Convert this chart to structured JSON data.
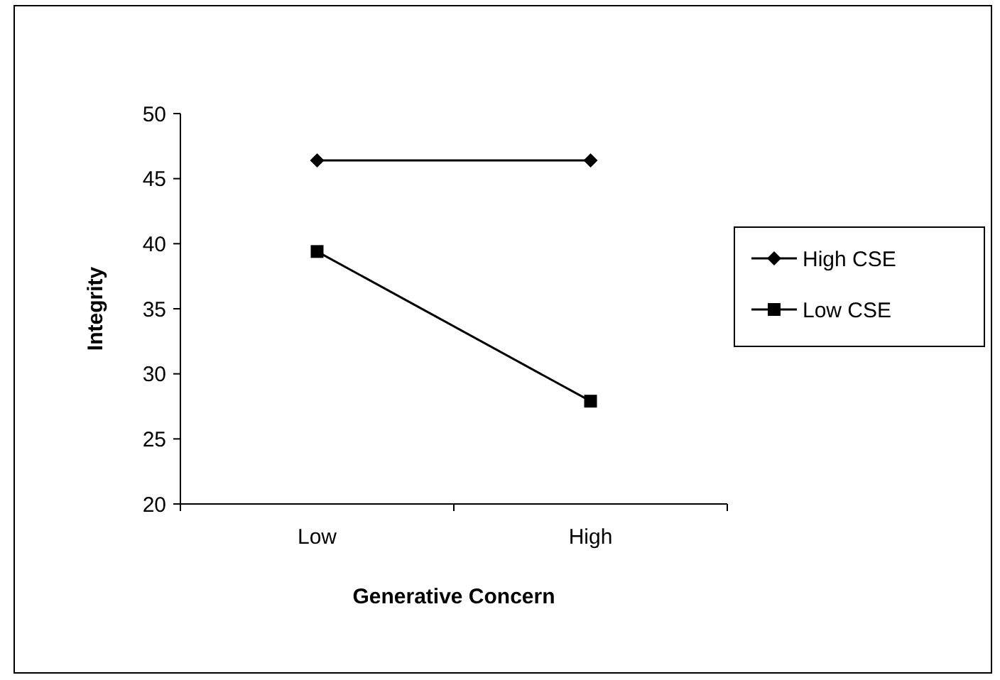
{
  "chart_data": {
    "type": "line",
    "xlabel": "Generative Concern",
    "ylabel": "Integrity",
    "categories": [
      "Low",
      "High"
    ],
    "series": [
      {
        "name": "High CSE",
        "color": "#000000",
        "marker": "diamond",
        "values": [
          46.4,
          46.4
        ]
      },
      {
        "name": "Low CSE",
        "color": "#000000",
        "marker": "square",
        "values": [
          39.4,
          27.9
        ]
      }
    ],
    "ylim": [
      20,
      50
    ],
    "yticks": [
      20,
      25,
      30,
      35,
      40,
      45,
      50
    ],
    "grid": false,
    "legend": "right",
    "line_style": "solid"
  }
}
